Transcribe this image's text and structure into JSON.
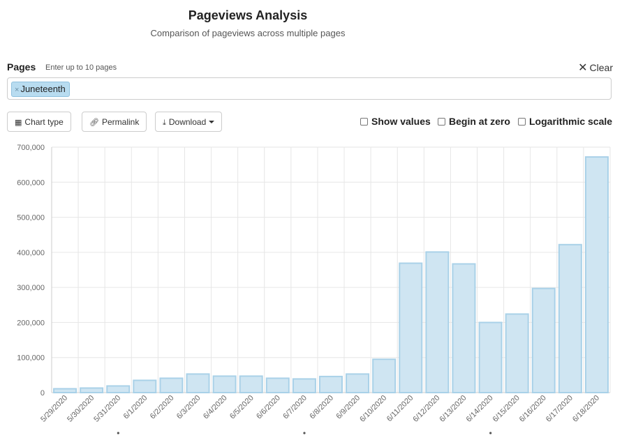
{
  "header": {
    "title": "Pageviews Analysis",
    "subtitle": "Comparison of pageviews across multiple pages"
  },
  "pages": {
    "label": "Pages",
    "hint": "Enter up to 10 pages",
    "clear_label": "Clear",
    "selected": [
      "Juneteenth"
    ]
  },
  "toolbar": {
    "chart_type_label": "Chart type",
    "permalink_label": "Permalink",
    "download_label": "Download"
  },
  "options": {
    "show_values": {
      "label": "Show values",
      "checked": false
    },
    "begin_at_zero": {
      "label": "Begin at zero",
      "checked": false
    },
    "log_scale": {
      "label": "Logarithmic scale",
      "checked": false
    }
  },
  "chart_data": {
    "type": "bar",
    "categories": [
      "5/29/2020",
      "5/30/2020",
      "5/31/2020",
      "6/1/2020",
      "6/2/2020",
      "6/3/2020",
      "6/4/2020",
      "6/5/2020",
      "6/6/2020",
      "6/7/2020",
      "6/8/2020",
      "6/9/2020",
      "6/10/2020",
      "6/11/2020",
      "6/12/2020",
      "6/13/2020",
      "6/14/2020",
      "6/15/2020",
      "6/16/2020",
      "6/17/2020",
      "6/18/2020"
    ],
    "values": [
      11000,
      13000,
      19000,
      35000,
      41000,
      53000,
      47000,
      47000,
      41000,
      39000,
      46000,
      53000,
      95000,
      369000,
      401000,
      367000,
      200000,
      224000,
      297000,
      422000,
      672000
    ],
    "marked_categories": [
      "6/1/2020",
      "6/8/2020",
      "6/15/2020"
    ],
    "ylim": [
      0,
      700000
    ],
    "yticks": [
      0,
      100000,
      200000,
      300000,
      400000,
      500000,
      600000,
      700000
    ],
    "ytick_labels": [
      "0",
      "100,000",
      "200,000",
      "300,000",
      "400,000",
      "500,000",
      "600,000",
      "700,000"
    ],
    "grid": true,
    "colors": {
      "fill": "#cfe5f2",
      "stroke": "#a9d1e8",
      "grid": "#e6e6e6",
      "axis": "#cccccc",
      "tick_text": "#666666"
    }
  }
}
